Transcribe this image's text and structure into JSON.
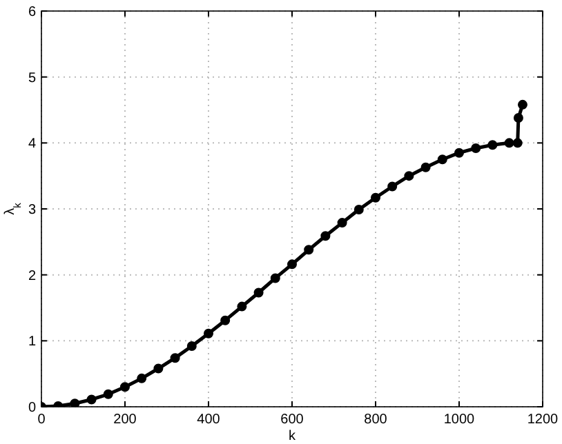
{
  "chart_data": {
    "type": "line",
    "xlabel": "k",
    "ylabel": "λ$_{k}$",
    "xlim": [
      0,
      1200
    ],
    "ylim": [
      0,
      6
    ],
    "xticks": [
      0,
      200,
      400,
      600,
      800,
      1000,
      1200
    ],
    "yticks": [
      0,
      1,
      2,
      3,
      4,
      5,
      6
    ],
    "grid": true,
    "marker": "circle",
    "line_style": "solid",
    "x": [
      0,
      40,
      80,
      120,
      160,
      200,
      240,
      280,
      320,
      360,
      400,
      440,
      480,
      520,
      560,
      600,
      640,
      680,
      720,
      760,
      800,
      840,
      880,
      920,
      960,
      1000,
      1040,
      1080,
      1120,
      1140,
      1142,
      1152
    ],
    "series": [
      {
        "color": "#000000",
        "values": [
          0,
          0.01,
          0.05,
          0.11,
          0.19,
          0.3,
          0.43,
          0.58,
          0.74,
          0.92,
          1.11,
          1.31,
          1.52,
          1.73,
          1.95,
          2.16,
          2.38,
          2.59,
          2.79,
          2.99,
          3.17,
          3.34,
          3.5,
          3.63,
          3.75,
          3.85,
          3.92,
          3.97,
          4.0,
          4.0,
          4.38,
          4.58
        ]
      }
    ]
  }
}
